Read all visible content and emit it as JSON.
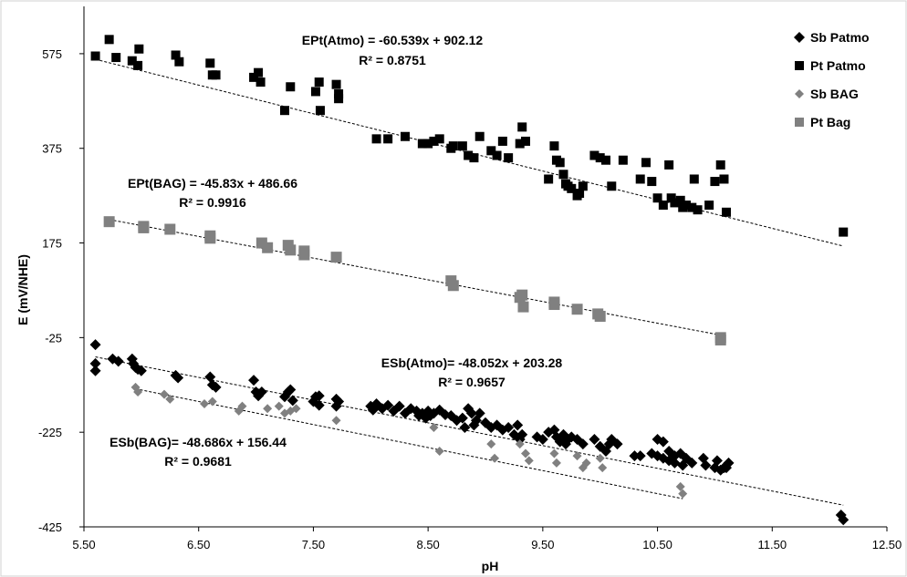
{
  "chart_data": {
    "type": "scatter",
    "title": "",
    "xlabel": "pH",
    "ylabel": "E (mV/NHE)",
    "xlim": [
      5.5,
      12.5
    ],
    "ylim": [
      -425,
      675
    ],
    "x_ticks": [
      "5.50",
      "6.50",
      "7.50",
      "8.50",
      "9.50",
      "10.50",
      "11.50",
      "12.50"
    ],
    "x_tick_values": [
      5.5,
      6.5,
      7.5,
      8.5,
      9.5,
      10.5,
      11.5,
      12.5
    ],
    "y_ticks": [
      "575",
      "375",
      "175",
      "-25",
      "-225",
      "-425"
    ],
    "y_tick_values": [
      575,
      375,
      175,
      -25,
      -225,
      -425
    ],
    "grid": false,
    "legend_position": "top-right",
    "series": [
      {
        "name": "Sb Patmo",
        "marker": "diamond",
        "color": "#000000",
        "points": [
          [
            5.6,
            -40
          ],
          [
            5.6,
            -80
          ],
          [
            5.6,
            -95
          ],
          [
            5.75,
            -70
          ],
          [
            5.8,
            -75
          ],
          [
            5.92,
            -70
          ],
          [
            5.93,
            -80
          ],
          [
            5.95,
            -88
          ],
          [
            5.97,
            -92
          ],
          [
            6.0,
            -95
          ],
          [
            6.3,
            -105
          ],
          [
            6.32,
            -110
          ],
          [
            6.6,
            -108
          ],
          [
            6.62,
            -125
          ],
          [
            6.65,
            -130
          ],
          [
            6.98,
            -115
          ],
          [
            7.0,
            -140
          ],
          [
            7.02,
            -148
          ],
          [
            7.05,
            -140
          ],
          [
            7.25,
            -150
          ],
          [
            7.28,
            -140
          ],
          [
            7.3,
            -135
          ],
          [
            7.32,
            -158
          ],
          [
            7.5,
            -160
          ],
          [
            7.52,
            -150
          ],
          [
            7.55,
            -148
          ],
          [
            7.55,
            -168
          ],
          [
            7.7,
            -155
          ],
          [
            7.7,
            -170
          ],
          [
            7.72,
            -160
          ],
          [
            8.0,
            -170
          ],
          [
            8.02,
            -178
          ],
          [
            8.05,
            -165
          ],
          [
            8.1,
            -175
          ],
          [
            8.15,
            -168
          ],
          [
            8.2,
            -180
          ],
          [
            8.25,
            -170
          ],
          [
            8.3,
            -185
          ],
          [
            8.35,
            -175
          ],
          [
            8.4,
            -180
          ],
          [
            8.42,
            -190
          ],
          [
            8.45,
            -185
          ],
          [
            8.48,
            -195
          ],
          [
            8.5,
            -180
          ],
          [
            8.52,
            -190
          ],
          [
            8.55,
            -185
          ],
          [
            8.6,
            -178
          ],
          [
            8.65,
            -188
          ],
          [
            8.7,
            -190
          ],
          [
            8.75,
            -200
          ],
          [
            8.8,
            -195
          ],
          [
            8.82,
            -215
          ],
          [
            8.85,
            -175
          ],
          [
            8.88,
            -185
          ],
          [
            8.9,
            -210
          ],
          [
            8.92,
            -200
          ],
          [
            8.95,
            -185
          ],
          [
            9.0,
            -205
          ],
          [
            9.05,
            -215
          ],
          [
            9.1,
            -210
          ],
          [
            9.15,
            -220
          ],
          [
            9.2,
            -215
          ],
          [
            9.25,
            -230
          ],
          [
            9.28,
            -210
          ],
          [
            9.3,
            -240
          ],
          [
            9.32,
            -230
          ],
          [
            9.45,
            -235
          ],
          [
            9.5,
            -240
          ],
          [
            9.55,
            -225
          ],
          [
            9.6,
            -220
          ],
          [
            9.62,
            -235
          ],
          [
            9.65,
            -245
          ],
          [
            9.68,
            -230
          ],
          [
            9.7,
            -250
          ],
          [
            9.72,
            -240
          ],
          [
            9.75,
            -235
          ],
          [
            9.8,
            -240
          ],
          [
            9.85,
            -250
          ],
          [
            9.95,
            -240
          ],
          [
            10.0,
            -255
          ],
          [
            10.05,
            -265
          ],
          [
            10.08,
            -250
          ],
          [
            10.1,
            -240
          ],
          [
            10.15,
            -250
          ],
          [
            10.3,
            -275
          ],
          [
            10.35,
            -275
          ],
          [
            10.45,
            -270
          ],
          [
            10.5,
            -275
          ],
          [
            10.5,
            -240
          ],
          [
            10.55,
            -245
          ],
          [
            10.55,
            -280
          ],
          [
            10.6,
            -265
          ],
          [
            10.6,
            -285
          ],
          [
            10.65,
            -275
          ],
          [
            10.65,
            -290
          ],
          [
            10.7,
            -270
          ],
          [
            10.72,
            -295
          ],
          [
            10.75,
            -280
          ],
          [
            10.8,
            -290
          ],
          [
            10.9,
            -280
          ],
          [
            10.92,
            -295
          ],
          [
            11.0,
            -300
          ],
          [
            11.02,
            -285
          ],
          [
            11.05,
            -305
          ],
          [
            11.08,
            -300
          ],
          [
            11.1,
            -300
          ],
          [
            11.12,
            -290
          ],
          [
            12.1,
            -400
          ],
          [
            12.12,
            -410
          ]
        ]
      },
      {
        "name": "Pt Patmo",
        "marker": "square",
        "color": "#000000",
        "points": [
          [
            5.6,
            570
          ],
          [
            5.72,
            605
          ],
          [
            5.78,
            567
          ],
          [
            5.92,
            560
          ],
          [
            5.97,
            550
          ],
          [
            5.98,
            585
          ],
          [
            6.3,
            572
          ],
          [
            6.33,
            558
          ],
          [
            6.6,
            555
          ],
          [
            6.62,
            530
          ],
          [
            6.65,
            530
          ],
          [
            6.98,
            525
          ],
          [
            7.02,
            535
          ],
          [
            7.04,
            515
          ],
          [
            7.25,
            455
          ],
          [
            7.3,
            505
          ],
          [
            7.52,
            495
          ],
          [
            7.55,
            515
          ],
          [
            7.56,
            455
          ],
          [
            7.7,
            510
          ],
          [
            7.72,
            490
          ],
          [
            7.72,
            480
          ],
          [
            8.05,
            395
          ],
          [
            8.15,
            395
          ],
          [
            8.3,
            400
          ],
          [
            8.45,
            385
          ],
          [
            8.5,
            385
          ],
          [
            8.55,
            390
          ],
          [
            8.6,
            395
          ],
          [
            8.7,
            375
          ],
          [
            8.72,
            380
          ],
          [
            8.8,
            380
          ],
          [
            8.85,
            360
          ],
          [
            8.9,
            355
          ],
          [
            8.95,
            400
          ],
          [
            9.05,
            370
          ],
          [
            9.1,
            360
          ],
          [
            9.15,
            390
          ],
          [
            9.2,
            355
          ],
          [
            9.3,
            385
          ],
          [
            9.32,
            420
          ],
          [
            9.35,
            390
          ],
          [
            9.55,
            310
          ],
          [
            9.6,
            380
          ],
          [
            9.62,
            350
          ],
          [
            9.65,
            345
          ],
          [
            9.68,
            320
          ],
          [
            9.7,
            300
          ],
          [
            9.72,
            295
          ],
          [
            9.75,
            290
          ],
          [
            9.8,
            275
          ],
          [
            9.82,
            280
          ],
          [
            9.85,
            295
          ],
          [
            9.95,
            360
          ],
          [
            10.0,
            355
          ],
          [
            10.05,
            350
          ],
          [
            10.1,
            295
          ],
          [
            10.2,
            350
          ],
          [
            10.35,
            310
          ],
          [
            10.4,
            345
          ],
          [
            10.45,
            305
          ],
          [
            10.5,
            270
          ],
          [
            10.55,
            255
          ],
          [
            10.6,
            340
          ],
          [
            10.62,
            270
          ],
          [
            10.65,
            260
          ],
          [
            10.7,
            265
          ],
          [
            10.72,
            250
          ],
          [
            10.75,
            255
          ],
          [
            10.8,
            250
          ],
          [
            10.82,
            310
          ],
          [
            10.85,
            245
          ],
          [
            10.95,
            255
          ],
          [
            11.0,
            305
          ],
          [
            11.05,
            340
          ],
          [
            11.08,
            310
          ],
          [
            11.1,
            240
          ],
          [
            12.12,
            198
          ]
        ]
      },
      {
        "name": "Sb BAG",
        "marker": "diamond",
        "color": "#808080",
        "points": [
          [
            5.95,
            -130
          ],
          [
            5.97,
            -140
          ],
          [
            6.2,
            -145
          ],
          [
            6.25,
            -155
          ],
          [
            6.55,
            -165
          ],
          [
            6.62,
            -160
          ],
          [
            6.85,
            -180
          ],
          [
            6.88,
            -170
          ],
          [
            7.1,
            -175
          ],
          [
            7.2,
            -170
          ],
          [
            7.25,
            -185
          ],
          [
            7.3,
            -180
          ],
          [
            7.35,
            -175
          ],
          [
            7.7,
            -200
          ],
          [
            8.55,
            -215
          ],
          [
            8.6,
            -265
          ],
          [
            9.05,
            -250
          ],
          [
            9.08,
            -280
          ],
          [
            9.3,
            -250
          ],
          [
            9.35,
            -270
          ],
          [
            9.38,
            -285
          ],
          [
            9.6,
            -270
          ],
          [
            9.62,
            -290
          ],
          [
            9.8,
            -275
          ],
          [
            9.85,
            -300
          ],
          [
            9.88,
            -290
          ],
          [
            10.0,
            -280
          ],
          [
            10.02,
            -300
          ],
          [
            10.7,
            -340
          ],
          [
            10.72,
            -355
          ]
        ]
      },
      {
        "name": "Pt Bag",
        "marker": "square",
        "color": "#808080",
        "points": [
          [
            5.72,
            220
          ],
          [
            6.02,
            210
          ],
          [
            6.02,
            207
          ],
          [
            6.25,
            204
          ],
          [
            6.6,
            190
          ],
          [
            6.6,
            185
          ],
          [
            7.05,
            175
          ],
          [
            7.1,
            165
          ],
          [
            7.28,
            170
          ],
          [
            7.3,
            160
          ],
          [
            7.42,
            158
          ],
          [
            7.42,
            150
          ],
          [
            7.7,
            145
          ],
          [
            8.7,
            95
          ],
          [
            8.72,
            85
          ],
          [
            9.3,
            60
          ],
          [
            9.32,
            65
          ],
          [
            9.33,
            40
          ],
          [
            9.6,
            50
          ],
          [
            9.6,
            45
          ],
          [
            9.8,
            35
          ],
          [
            9.98,
            25
          ],
          [
            10.0,
            20
          ],
          [
            11.05,
            -25
          ],
          [
            11.05,
            -30
          ]
        ]
      }
    ],
    "trendlines": [
      {
        "series": "Pt Patmo",
        "slope": -60.539,
        "intercept": 902.12,
        "x_range": [
          5.6,
          12.12
        ]
      },
      {
        "series": "Pt Bag",
        "slope": -45.83,
        "intercept": 486.66,
        "x_range": [
          5.72,
          11.05
        ]
      },
      {
        "series": "Sb Patmo",
        "slope": -48.052,
        "intercept": 203.28,
        "x_range": [
          5.6,
          12.12
        ]
      },
      {
        "series": "Sb BAG",
        "slope": -48.686,
        "intercept": 156.44,
        "x_range": [
          5.95,
          10.72
        ]
      }
    ],
    "annotations": [
      {
        "id": "pt_atmo_eq",
        "text": "EPt(Atmo) = -60.539x + 902.12"
      },
      {
        "id": "pt_atmo_r2",
        "text": "R² = 0.8751"
      },
      {
        "id": "pt_bag_eq",
        "text": "EPt(BAG) = -45.83x + 486.66"
      },
      {
        "id": "pt_bag_r2",
        "text": "R² = 0.9916"
      },
      {
        "id": "sb_atmo_eq",
        "text": "ESb(Atmo)= -48.052x + 203.28"
      },
      {
        "id": "sb_atmo_r2",
        "text": "R² = 0.9657"
      },
      {
        "id": "sb_bag_eq",
        "text": "ESb(BAG)= -48.686x + 156.44"
      },
      {
        "id": "sb_bag_r2",
        "text": "R² = 0.9681"
      }
    ]
  }
}
